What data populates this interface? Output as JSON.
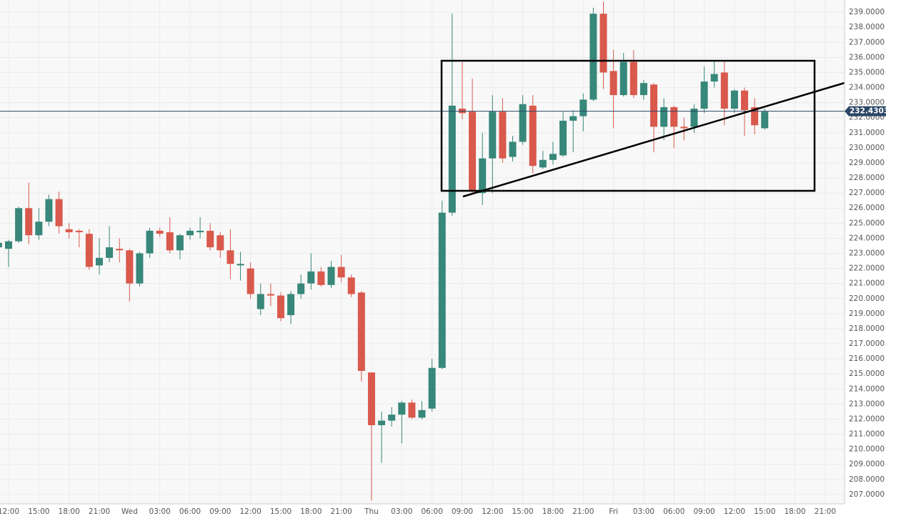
{
  "chart_data": {
    "type": "candlestick",
    "categories": [
      null,
      "12:00",
      null,
      null,
      "15:00",
      null,
      null,
      "18:00",
      null,
      null,
      "21:00",
      null,
      null,
      "Wed",
      null,
      null,
      "03:00",
      null,
      null,
      "06:00",
      null,
      null,
      "09:00",
      null,
      null,
      "12:00",
      null,
      null,
      "15:00",
      null,
      null,
      "18:00",
      null,
      null,
      "21:00",
      null,
      null,
      "Thu",
      null,
      null,
      "03:00",
      null,
      null,
      "06:00",
      null,
      null,
      "09:00",
      null,
      null,
      "12:00",
      null,
      null,
      "15:00",
      null,
      null,
      "18:00",
      null,
      null,
      "21:00",
      null,
      null,
      "Fri",
      null,
      null,
      "03:00",
      null,
      null,
      "06:00",
      null,
      null,
      "09:00",
      null,
      null,
      "12:00",
      null,
      null,
      "15:00",
      null,
      null,
      "18:00",
      null,
      null,
      "21:00"
    ],
    "open": [
      223.4,
      223.3,
      223.8,
      226.0,
      224.2,
      225.1,
      226.6,
      224.6,
      224.5,
      224.3,
      222.2,
      222.7,
      223.3,
      223.2,
      221.0,
      223.0,
      224.5,
      224.4,
      223.2,
      224.2,
      224.4,
      224.5,
      224.2,
      223.2,
      222.2,
      222.0,
      219.3,
      220.3,
      220.2,
      218.9,
      220.3,
      221.0,
      221.8,
      220.9,
      222.1,
      221.4,
      220.4,
      215.1,
      211.6,
      211.9,
      212.3,
      213.1,
      212.1,
      212.7,
      215.4,
      225.7,
      232.6,
      232.4,
      227.0,
      229.3,
      232.4,
      229.4,
      230.4,
      232.8,
      228.7,
      229.2,
      229.5,
      231.8,
      232.1,
      233.2,
      238.9,
      235.1,
      233.5,
      235.7,
      233.5,
      234.2,
      231.4,
      232.7,
      231.4,
      231.4,
      232.6,
      234.4,
      235.0,
      232.6,
      233.8,
      232.7,
      231.3,
      null,
      null,
      null,
      null,
      null,
      null
    ],
    "high": [
      223.9,
      223.9,
      226.1,
      227.7,
      226.0,
      226.9,
      227.1,
      225.0,
      224.6,
      224.6,
      224.0,
      224.8,
      224.0,
      223.3,
      223.1,
      224.7,
      224.7,
      225.4,
      224.3,
      224.7,
      225.4,
      225.0,
      224.4,
      224.6,
      223.1,
      222.4,
      221.0,
      221.0,
      220.4,
      220.5,
      221.6,
      223.0,
      222.1,
      222.5,
      222.9,
      221.6,
      220.5,
      215.1,
      212.5,
      212.8,
      213.2,
      213.3,
      213.2,
      216.0,
      226.5,
      238.9,
      235.7,
      234.6,
      231.0,
      233.5,
      233.3,
      230.8,
      233.5,
      233.5,
      229.8,
      230.4,
      232.4,
      232.5,
      233.6,
      239.3,
      239.7,
      236.5,
      236.3,
      236.5,
      234.5,
      234.3,
      233.3,
      232.8,
      232.0,
      232.9,
      235.4,
      235.8,
      235.8,
      233.9,
      234.0,
      233.3,
      232.6,
      null,
      null,
      null,
      null,
      null,
      null
    ],
    "low": [
      223.3,
      222.1,
      223.7,
      223.6,
      223.9,
      224.8,
      224.3,
      224.0,
      223.4,
      221.9,
      221.6,
      222.4,
      222.4,
      219.8,
      220.8,
      222.7,
      224.1,
      223.0,
      222.6,
      223.9,
      224.0,
      223.2,
      222.7,
      221.3,
      221.2,
      220.0,
      218.9,
      219.5,
      218.5,
      218.3,
      220.0,
      220.6,
      220.8,
      220.7,
      221.1,
      220.1,
      214.5,
      206.6,
      209.1,
      211.5,
      210.4,
      212.0,
      212.0,
      212.5,
      215.3,
      225.5,
      231.9,
      226.9,
      226.2,
      227.0,
      229.0,
      229.1,
      230.2,
      228.3,
      228.6,
      228.9,
      229.4,
      229.7,
      231.1,
      233.1,
      233.9,
      231.3,
      233.4,
      233.3,
      233.2,
      229.7,
      230.5,
      230.0,
      230.5,
      231.0,
      232.3,
      234.0,
      231.5,
      232.3,
      230.8,
      230.9,
      231.2,
      null,
      null,
      null,
      null,
      null,
      null
    ],
    "close": [
      223.7,
      223.8,
      226.0,
      224.2,
      225.1,
      226.6,
      224.8,
      224.4,
      224.4,
      222.1,
      222.7,
      223.4,
      223.2,
      221.0,
      223.0,
      224.5,
      224.3,
      223.2,
      224.2,
      224.5,
      224.5,
      223.4,
      223.2,
      222.3,
      222.3,
      220.3,
      220.3,
      220.2,
      218.7,
      220.3,
      221.0,
      221.8,
      220.9,
      222.1,
      221.4,
      220.3,
      215.2,
      211.6,
      211.9,
      212.3,
      213.1,
      212.1,
      212.6,
      215.4,
      225.7,
      232.8,
      232.3,
      227.1,
      229.3,
      232.4,
      229.3,
      230.4,
      232.9,
      228.8,
      229.2,
      229.6,
      231.8,
      232.1,
      233.2,
      238.9,
      235.0,
      233.5,
      235.7,
      233.5,
      234.3,
      231.4,
      232.7,
      231.4,
      231.3,
      232.6,
      234.4,
      234.9,
      232.6,
      233.8,
      232.5,
      231.5,
      232.4,
      null,
      null,
      null,
      null,
      null,
      null
    ],
    "up_color": "#37877a",
    "down_color": "#d9594c",
    "last_price": 232.43039,
    "last_price_color": "#2b4766",
    "ylim": [
      206.38,
      239.81
    ],
    "yticks": [
      {
        "value": 207,
        "label": "207.0000"
      },
      {
        "value": 208,
        "label": "208.0000"
      },
      {
        "value": 209,
        "label": "209.0000"
      },
      {
        "value": 210,
        "label": "210.0000"
      },
      {
        "value": 211,
        "label": "211.0000"
      },
      {
        "value": 212,
        "label": "212.0000"
      },
      {
        "value": 213,
        "label": "213.0000"
      },
      {
        "value": 214,
        "label": "214.0000"
      },
      {
        "value": 215,
        "label": "215.0000"
      },
      {
        "value": 216,
        "label": "216.0000"
      },
      {
        "value": 217,
        "label": "217.0000"
      },
      {
        "value": 218,
        "label": "218.0000"
      },
      {
        "value": 219,
        "label": "219.0000"
      },
      {
        "value": 220,
        "label": "220.0000"
      },
      {
        "value": 221,
        "label": "221.0000"
      },
      {
        "value": 222,
        "label": "222.0000"
      },
      {
        "value": 223,
        "label": "223.0000"
      },
      {
        "value": 224,
        "label": "224.0000"
      },
      {
        "value": 225,
        "label": "225.0000"
      },
      {
        "value": 226,
        "label": "226.0000"
      },
      {
        "value": 227,
        "label": "227.0000"
      },
      {
        "value": 228,
        "label": "228.0000"
      },
      {
        "value": 229,
        "label": "229.0000"
      },
      {
        "value": 230,
        "label": "230.0000"
      },
      {
        "value": 231,
        "label": "231.0000"
      },
      {
        "value": 232,
        "label": "232.0000"
      },
      {
        "value": 233,
        "label": "233.0000"
      },
      {
        "value": 234,
        "label": "234.0000"
      },
      {
        "value": 235,
        "label": "235.0000"
      },
      {
        "value": 236,
        "label": "236.0000"
      },
      {
        "value": 237,
        "label": "237.0000"
      },
      {
        "value": 238,
        "label": "238.0000"
      },
      {
        "value": 239,
        "label": "239.0000"
      }
    ],
    "grid": true
  }
}
